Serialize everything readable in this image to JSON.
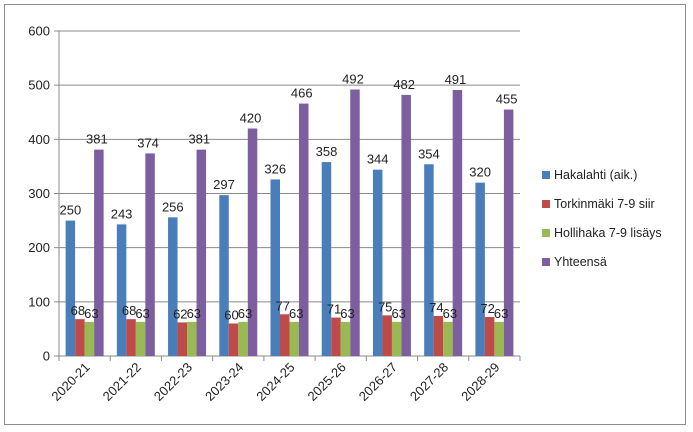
{
  "chart_data": {
    "type": "bar",
    "categories": [
      "2020-21",
      "2021-22",
      "2022-23",
      "2023-24",
      "2024-25",
      "2025-26",
      "2026-27",
      "2027-28",
      "2028-29"
    ],
    "series": [
      {
        "name": "Hakalahti (aik.)",
        "color": "#4a7ebb",
        "values": [
          250,
          243,
          256,
          297,
          326,
          358,
          344,
          354,
          320
        ]
      },
      {
        "name": "Torkinmäki 7-9 siir",
        "color": "#be4b48",
        "values": [
          68,
          68,
          62,
          60,
          77,
          71,
          75,
          74,
          72
        ]
      },
      {
        "name": "Hollihaka 7-9 lisäys",
        "color": "#98b954",
        "values": [
          63,
          63,
          63,
          63,
          63,
          63,
          63,
          63,
          63
        ]
      },
      {
        "name": "Yhteensä",
        "color": "#7d5fa0",
        "values": [
          381,
          374,
          381,
          420,
          466,
          492,
          482,
          491,
          455
        ]
      }
    ],
    "ylim": [
      0,
      600
    ],
    "yticks": [
      0,
      100,
      200,
      300,
      400,
      500,
      600
    ],
    "grid": true,
    "legend": "right",
    "title": "",
    "xlabel": "",
    "ylabel": ""
  }
}
